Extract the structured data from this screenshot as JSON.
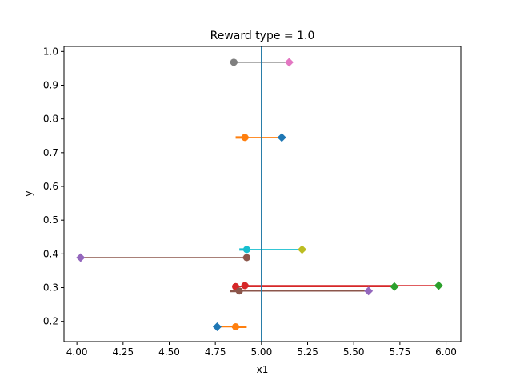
{
  "chart_data": {
    "type": "scatter",
    "title": "Reward type = 1.0",
    "xlabel": "x1",
    "ylabel": "y",
    "xlim": [
      3.93,
      6.08
    ],
    "ylim": [
      0.14,
      1.015
    ],
    "xticks": [
      4.0,
      4.25,
      4.5,
      4.75,
      5.0,
      5.25,
      5.5,
      5.75,
      6.0
    ],
    "xtick_labels": [
      "4.00",
      "4.25",
      "4.50",
      "4.75",
      "5.00",
      "5.25",
      "5.50",
      "5.75",
      "6.00"
    ],
    "yticks": [
      0.2,
      0.3,
      0.4,
      0.5,
      0.6,
      0.7,
      0.8,
      0.9,
      1.0
    ],
    "ytick_labels": [
      "0.2",
      "0.3",
      "0.4",
      "0.5",
      "0.6",
      "0.7",
      "0.8",
      "0.9",
      "1.0"
    ],
    "grid": false,
    "reference_line": {
      "x": 5.0,
      "color": "#1f77a4"
    },
    "segments": [
      {
        "y": 0.968,
        "x_circle": 4.85,
        "x_diamond": 5.15,
        "line_color": "#7f7f7f",
        "circle_color": "#7f7f7f",
        "diamond_color": "#e377c2",
        "bar_x": [
          4.85,
          4.87
        ]
      },
      {
        "y": 0.745,
        "x_circle": 4.91,
        "x_diamond": 5.11,
        "line_color": "#ff7f0e",
        "circle_color": "#ff7f0e",
        "diamond_color": "#1f77b4",
        "bar_x": [
          4.86,
          4.93
        ]
      },
      {
        "y": 0.413,
        "x_circle": 4.92,
        "x_diamond": 5.22,
        "line_color": "#17becf",
        "circle_color": "#17becf",
        "diamond_color": "#bcbd22",
        "bar_x": [
          4.88,
          4.94
        ]
      },
      {
        "y": 0.389,
        "x_circle": 4.92,
        "x_diamond": 4.02,
        "line_color": "#8c564b",
        "circle_color": "#8c564b",
        "diamond_color": "#9467bd",
        "bar_x": [
          4.9,
          4.93
        ]
      },
      {
        "y": 0.306,
        "x_circle": 4.91,
        "x_diamond": 5.96,
        "line_color": "#d62728",
        "circle_color": "#d62728",
        "diamond_color": "#2ca02c",
        "bar_x": [
          4.9,
          4.93
        ]
      },
      {
        "y": 0.303,
        "x_circle": 4.86,
        "x_diamond": 5.72,
        "line_color": "#d62728",
        "circle_color": "#d62728",
        "diamond_color": "#2ca02c",
        "bar_x": [
          4.85,
          4.87
        ]
      },
      {
        "y": 0.29,
        "x_circle": 4.88,
        "x_diamond": 5.58,
        "line_color": "#8c564b",
        "circle_color": "#8c564b",
        "diamond_color": "#9467bd",
        "bar_x": [
          4.83,
          4.89
        ]
      },
      {
        "y": 0.184,
        "x_circle": 4.86,
        "x_diamond": 4.76,
        "line_color": "#ff7f0e",
        "circle_color": "#ff7f0e",
        "diamond_color": "#1f77b4",
        "bar_x": [
          4.84,
          4.92
        ]
      }
    ]
  }
}
